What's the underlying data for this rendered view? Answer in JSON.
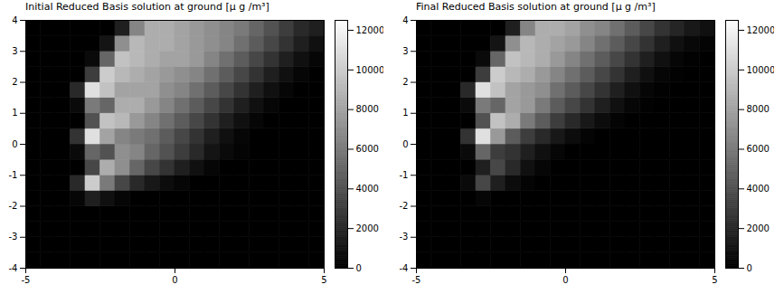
{
  "chart_data": [
    {
      "type": "heatmap",
      "title": "Initial Reduced Basis solution at ground [μ g /m³]",
      "x": [
        -4.75,
        -4.25,
        -3.75,
        -3.25,
        -2.75,
        -2.25,
        -1.75,
        -1.25,
        -0.75,
        -0.25,
        0.25,
        0.75,
        1.25,
        1.75,
        2.25,
        2.75,
        3.25,
        3.75,
        4.25,
        4.75
      ],
      "y": [
        -3.75,
        -3.25,
        -2.75,
        -2.25,
        -1.75,
        -1.25,
        -0.75,
        -0.25,
        0.25,
        0.75,
        1.25,
        1.75,
        2.25,
        2.75,
        3.25,
        3.75
      ],
      "cells": [
        [
          0,
          0,
          0,
          0,
          0,
          0,
          0,
          0,
          0,
          0,
          0,
          0,
          0,
          0,
          0,
          0,
          0,
          0,
          0,
          0
        ],
        [
          0,
          0,
          0,
          0,
          0,
          0,
          0,
          0,
          0,
          0,
          0,
          0,
          0,
          0,
          0,
          0,
          0,
          0,
          0,
          0
        ],
        [
          0,
          0,
          0,
          0,
          0,
          0,
          0,
          0,
          0,
          0,
          0,
          0,
          0,
          0,
          0,
          0,
          0,
          0,
          0,
          0
        ],
        [
          0,
          0,
          0,
          0,
          0,
          0,
          0,
          0,
          0,
          0,
          0,
          0,
          0,
          0,
          0,
          0,
          0,
          0,
          0,
          0
        ],
        [
          0,
          0,
          0,
          300,
          1500,
          800,
          300,
          0,
          0,
          0,
          0,
          0,
          0,
          0,
          0,
          0,
          0,
          0,
          0,
          0
        ],
        [
          0,
          0,
          0,
          2000,
          10000,
          6000,
          3500,
          2000,
          1200,
          600,
          300,
          0,
          0,
          0,
          0,
          0,
          0,
          0,
          0,
          0
        ],
        [
          0,
          0,
          0,
          0,
          3500,
          8500,
          7000,
          5000,
          3500,
          2500,
          1500,
          800,
          300,
          0,
          0,
          0,
          0,
          0,
          0,
          0
        ],
        [
          0,
          0,
          0,
          500,
          5000,
          4000,
          7000,
          6500,
          5000,
          4000,
          3000,
          2000,
          1000,
          500,
          200,
          0,
          0,
          0,
          0,
          0
        ],
        [
          0,
          0,
          0,
          2500,
          11000,
          8000,
          6500,
          6000,
          5500,
          4500,
          3500,
          2500,
          1500,
          800,
          300,
          0,
          0,
          0,
          0,
          0
        ],
        [
          0,
          0,
          0,
          0,
          4000,
          9500,
          9000,
          7500,
          6500,
          5500,
          4500,
          3500,
          2500,
          1500,
          800,
          300,
          0,
          0,
          0,
          0
        ],
        [
          0,
          0,
          0,
          500,
          6000,
          5000,
          8500,
          8500,
          7500,
          6500,
          5500,
          4500,
          3500,
          2500,
          1500,
          800,
          300,
          0,
          0,
          0
        ],
        [
          0,
          0,
          0,
          2000,
          11000,
          9500,
          8000,
          8000,
          8000,
          7000,
          6500,
          5500,
          4500,
          3500,
          2500,
          1500,
          800,
          300,
          0,
          0
        ],
        [
          0,
          0,
          0,
          0,
          3000,
          10000,
          9000,
          8500,
          8000,
          7500,
          7000,
          6500,
          5500,
          4500,
          3500,
          2500,
          1500,
          800,
          300,
          0
        ],
        [
          0,
          0,
          0,
          0,
          500,
          5000,
          9500,
          9000,
          8500,
          8000,
          8000,
          7500,
          6500,
          5500,
          4500,
          3500,
          2500,
          1500,
          800,
          300
        ],
        [
          0,
          0,
          0,
          0,
          0,
          1000,
          7000,
          9000,
          8500,
          8500,
          8000,
          7500,
          7000,
          6500,
          5500,
          4500,
          3500,
          2500,
          1500,
          800
        ],
        [
          0,
          0,
          0,
          0,
          0,
          0,
          1500,
          6500,
          8500,
          8500,
          8000,
          7500,
          7000,
          6500,
          6000,
          5000,
          4000,
          3000,
          2000,
          1500
        ]
      ],
      "xlim": [
        -5,
        5
      ],
      "ylim": [
        -4,
        4
      ],
      "xticks": [
        -5,
        0,
        5
      ],
      "yticks": [
        -4,
        -3,
        -2,
        -1,
        0,
        1,
        2,
        3,
        4
      ],
      "colorbar_range": [
        0,
        12500
      ],
      "colorbar_ticks": [
        0,
        2000,
        4000,
        6000,
        8000,
        10000,
        12000
      ],
      "color_range": [
        "#000000",
        "#ffffff"
      ]
    },
    {
      "type": "heatmap",
      "title": "Final Reduced Basis solution at ground [μ g /m³]",
      "x": [
        -4.75,
        -4.25,
        -3.75,
        -3.25,
        -2.75,
        -2.25,
        -1.75,
        -1.25,
        -0.75,
        -0.25,
        0.25,
        0.75,
        1.25,
        1.75,
        2.25,
        2.75,
        3.25,
        3.75,
        4.25,
        4.75
      ],
      "y": [
        -3.75,
        -3.25,
        -2.75,
        -2.25,
        -1.75,
        -1.25,
        -0.75,
        -0.25,
        0.25,
        0.75,
        1.25,
        1.75,
        2.25,
        2.75,
        3.25,
        3.75
      ],
      "cells": [
        [
          0,
          0,
          0,
          0,
          0,
          0,
          0,
          0,
          0,
          0,
          0,
          0,
          0,
          0,
          0,
          0,
          0,
          0,
          0,
          0
        ],
        [
          0,
          0,
          0,
          0,
          0,
          0,
          0,
          0,
          0,
          0,
          0,
          0,
          0,
          0,
          0,
          0,
          0,
          0,
          0,
          0
        ],
        [
          0,
          0,
          0,
          0,
          0,
          0,
          0,
          0,
          0,
          0,
          0,
          0,
          0,
          0,
          0,
          0,
          0,
          0,
          0,
          0
        ],
        [
          0,
          0,
          0,
          0,
          0,
          0,
          0,
          0,
          0,
          0,
          0,
          0,
          0,
          0,
          0,
          0,
          0,
          0,
          0,
          0
        ],
        [
          0,
          0,
          0,
          0,
          300,
          0,
          0,
          0,
          0,
          0,
          0,
          0,
          0,
          0,
          0,
          0,
          0,
          0,
          0,
          0
        ],
        [
          0,
          0,
          0,
          500,
          3500,
          1500,
          600,
          200,
          0,
          0,
          0,
          0,
          0,
          0,
          0,
          0,
          0,
          0,
          0,
          0
        ],
        [
          0,
          0,
          0,
          0,
          1500,
          3500,
          2000,
          800,
          300,
          0,
          0,
          0,
          0,
          0,
          0,
          0,
          0,
          0,
          0,
          0
        ],
        [
          0,
          0,
          0,
          500,
          5000,
          3000,
          2500,
          1500,
          800,
          300,
          0,
          0,
          0,
          0,
          0,
          0,
          0,
          0,
          0,
          0
        ],
        [
          0,
          0,
          0,
          2500,
          11000,
          7500,
          4500,
          3000,
          2000,
          1200,
          600,
          200,
          0,
          0,
          0,
          0,
          0,
          0,
          0,
          0
        ],
        [
          0,
          0,
          0,
          0,
          4000,
          9500,
          8500,
          6000,
          4500,
          3000,
          2000,
          1200,
          600,
          200,
          0,
          0,
          0,
          0,
          0,
          0
        ],
        [
          0,
          0,
          0,
          500,
          6000,
          5000,
          8000,
          7500,
          6000,
          4500,
          3500,
          2500,
          1500,
          800,
          300,
          100,
          0,
          0,
          0,
          0
        ],
        [
          0,
          0,
          0,
          2000,
          11000,
          9500,
          8000,
          7500,
          7000,
          5500,
          4500,
          3500,
          2500,
          1500,
          800,
          300,
          100,
          0,
          0,
          0
        ],
        [
          0,
          0,
          0,
          0,
          3000,
          10000,
          9000,
          8500,
          7500,
          6500,
          5500,
          4500,
          3500,
          2500,
          1500,
          800,
          300,
          100,
          0,
          0
        ],
        [
          0,
          0,
          0,
          0,
          500,
          5000,
          9500,
          9000,
          8500,
          7500,
          6500,
          5500,
          4500,
          3500,
          2500,
          1500,
          800,
          300,
          100,
          0
        ],
        [
          0,
          0,
          0,
          0,
          0,
          1000,
          7000,
          9000,
          8500,
          8000,
          7500,
          6500,
          5500,
          4500,
          3500,
          2500,
          1500,
          800,
          400,
          200
        ],
        [
          0,
          0,
          0,
          0,
          0,
          0,
          1500,
          6500,
          8500,
          8500,
          8000,
          7000,
          6500,
          5500,
          4500,
          3500,
          2500,
          1800,
          1200,
          800
        ]
      ],
      "xlim": [
        -5,
        5
      ],
      "ylim": [
        -4,
        4
      ],
      "xticks": [
        -5,
        0,
        5
      ],
      "yticks": [
        -4,
        -3,
        -2,
        -1,
        0,
        1,
        2,
        3,
        4
      ],
      "colorbar_range": [
        0,
        12500
      ],
      "colorbar_ticks": [
        0,
        2000,
        4000,
        6000,
        8000,
        10000,
        12000
      ],
      "color_range": [
        "#000000",
        "#ffffff"
      ]
    }
  ]
}
